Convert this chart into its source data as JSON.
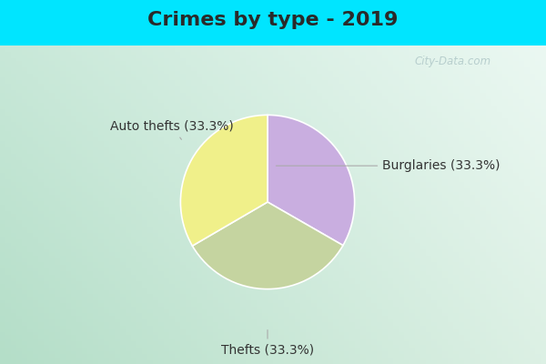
{
  "title": "Crimes by type - 2019",
  "slices": [
    {
      "label": "Burglaries (33.3%)",
      "value": 33.3,
      "color": "#c9aee0"
    },
    {
      "label": "Thefts (33.3%)",
      "value": 33.3,
      "color": "#c5d4a0"
    },
    {
      "label": "Auto thefts (33.3%)",
      "value": 33.4,
      "color": "#f0f08a"
    }
  ],
  "bg_top_color": "#00e5ff",
  "bg_inner_color_tl": "#c8e8d8",
  "bg_inner_color_tr": "#e8f4f0",
  "bg_inner_color_br": "#f0f8f0",
  "bg_inner_color_bl": "#b8dcc8",
  "watermark": "City-Data.com",
  "title_fontsize": 16,
  "label_fontsize": 10,
  "title_color": "#2a2a2a",
  "label_color": "#333333",
  "arrow_color": "#aaaaaa",
  "border_color": "#cccccc"
}
